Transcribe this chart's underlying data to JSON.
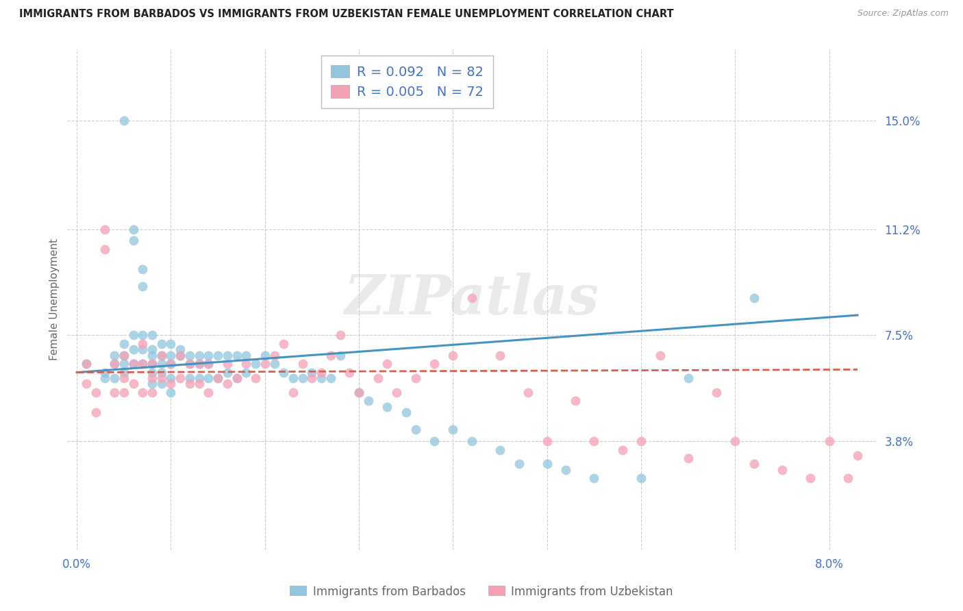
{
  "title": "IMMIGRANTS FROM BARBADOS VS IMMIGRANTS FROM UZBEKISTAN FEMALE UNEMPLOYMENT CORRELATION CHART",
  "source": "Source: ZipAtlas.com",
  "xlabel_barbados": "Immigrants from Barbados",
  "xlabel_uzbekistan": "Immigrants from Uzbekistan",
  "ylabel": "Female Unemployment",
  "watermark": "ZIPatlas",
  "y_tick_labels": [
    "15.0%",
    "11.2%",
    "7.5%",
    "3.8%"
  ],
  "y_tick_values": [
    0.15,
    0.112,
    0.075,
    0.038
  ],
  "ylim": [
    0.0,
    0.175
  ],
  "xlim": [
    -0.001,
    0.085
  ],
  "color_barbados": "#92c5de",
  "color_uzbekistan": "#f4a0b5",
  "trendline_barbados_color": "#4393c3",
  "trendline_uzbekistan_color": "#d6604d",
  "legend_R_barbados": "0.092",
  "legend_N_barbados": "82",
  "legend_R_uzbekistan": "0.005",
  "legend_N_uzbekistan": "72",
  "legend_color": "#4472c4",
  "background_color": "#ffffff",
  "grid_color": "#cccccc",
  "title_color": "#222222",
  "axis_label_color": "#666666",
  "tick_label_color": "#4472c4",
  "scatter_barbados_x": [
    0.001,
    0.003,
    0.003,
    0.004,
    0.004,
    0.004,
    0.005,
    0.005,
    0.005,
    0.005,
    0.005,
    0.006,
    0.006,
    0.006,
    0.006,
    0.006,
    0.007,
    0.007,
    0.007,
    0.007,
    0.007,
    0.008,
    0.008,
    0.008,
    0.008,
    0.008,
    0.008,
    0.009,
    0.009,
    0.009,
    0.009,
    0.009,
    0.01,
    0.01,
    0.01,
    0.01,
    0.01,
    0.011,
    0.011,
    0.012,
    0.012,
    0.012,
    0.013,
    0.013,
    0.013,
    0.014,
    0.014,
    0.014,
    0.015,
    0.015,
    0.016,
    0.016,
    0.017,
    0.017,
    0.018,
    0.018,
    0.019,
    0.02,
    0.021,
    0.022,
    0.023,
    0.024,
    0.025,
    0.026,
    0.027,
    0.028,
    0.03,
    0.031,
    0.033,
    0.035,
    0.036,
    0.038,
    0.04,
    0.042,
    0.045,
    0.047,
    0.05,
    0.052,
    0.055,
    0.06,
    0.065,
    0.072
  ],
  "scatter_barbados_y": [
    0.065,
    0.062,
    0.06,
    0.068,
    0.065,
    0.06,
    0.15,
    0.072,
    0.068,
    0.065,
    0.062,
    0.112,
    0.108,
    0.075,
    0.07,
    0.065,
    0.098,
    0.092,
    0.075,
    0.07,
    0.065,
    0.075,
    0.07,
    0.068,
    0.065,
    0.062,
    0.058,
    0.072,
    0.068,
    0.065,
    0.062,
    0.058,
    0.072,
    0.068,
    0.065,
    0.06,
    0.055,
    0.07,
    0.068,
    0.068,
    0.065,
    0.06,
    0.068,
    0.065,
    0.06,
    0.068,
    0.065,
    0.06,
    0.068,
    0.06,
    0.068,
    0.062,
    0.068,
    0.06,
    0.068,
    0.062,
    0.065,
    0.068,
    0.065,
    0.062,
    0.06,
    0.06,
    0.062,
    0.06,
    0.06,
    0.068,
    0.055,
    0.052,
    0.05,
    0.048,
    0.042,
    0.038,
    0.042,
    0.038,
    0.035,
    0.03,
    0.03,
    0.028,
    0.025,
    0.025,
    0.06,
    0.088
  ],
  "scatter_uzbekistan_x": [
    0.001,
    0.001,
    0.002,
    0.002,
    0.003,
    0.003,
    0.004,
    0.004,
    0.005,
    0.005,
    0.005,
    0.006,
    0.006,
    0.007,
    0.007,
    0.007,
    0.008,
    0.008,
    0.008,
    0.009,
    0.009,
    0.01,
    0.01,
    0.011,
    0.011,
    0.012,
    0.012,
    0.013,
    0.013,
    0.014,
    0.014,
    0.015,
    0.016,
    0.016,
    0.017,
    0.018,
    0.019,
    0.02,
    0.021,
    0.022,
    0.023,
    0.024,
    0.025,
    0.026,
    0.027,
    0.028,
    0.029,
    0.03,
    0.032,
    0.033,
    0.034,
    0.036,
    0.038,
    0.04,
    0.042,
    0.045,
    0.048,
    0.05,
    0.053,
    0.055,
    0.058,
    0.06,
    0.062,
    0.065,
    0.068,
    0.07,
    0.072,
    0.075,
    0.078,
    0.08,
    0.082,
    0.083
  ],
  "scatter_uzbekistan_y": [
    0.065,
    0.058,
    0.055,
    0.048,
    0.112,
    0.105,
    0.065,
    0.055,
    0.068,
    0.06,
    0.055,
    0.065,
    0.058,
    0.072,
    0.065,
    0.055,
    0.065,
    0.06,
    0.055,
    0.068,
    0.06,
    0.065,
    0.058,
    0.068,
    0.06,
    0.065,
    0.058,
    0.065,
    0.058,
    0.065,
    0.055,
    0.06,
    0.065,
    0.058,
    0.06,
    0.065,
    0.06,
    0.065,
    0.068,
    0.072,
    0.055,
    0.065,
    0.06,
    0.062,
    0.068,
    0.075,
    0.062,
    0.055,
    0.06,
    0.065,
    0.055,
    0.06,
    0.065,
    0.068,
    0.088,
    0.068,
    0.055,
    0.038,
    0.052,
    0.038,
    0.035,
    0.038,
    0.068,
    0.032,
    0.055,
    0.038,
    0.03,
    0.028,
    0.025,
    0.038,
    0.025,
    0.033
  ],
  "trendline_barbados_x0": 0.0,
  "trendline_barbados_x1": 0.083,
  "trendline_barbados_y0": 0.062,
  "trendline_barbados_y1": 0.082,
  "trendline_uzbekistan_x0": 0.0,
  "trendline_uzbekistan_x1": 0.083,
  "trendline_uzbekistan_y0": 0.062,
  "trendline_uzbekistan_y1": 0.063
}
